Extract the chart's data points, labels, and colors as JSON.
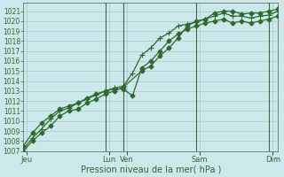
{
  "title": "",
  "xlabel": "Pression niveau de la mer( hPa )",
  "bg_color": "#cce8ea",
  "grid_color": "#99cccc",
  "line_color": "#2d6a2d",
  "dark_vline_color": "#446644",
  "ylim": [
    1007,
    1021.8
  ],
  "yticks": [
    1007,
    1008,
    1009,
    1010,
    1011,
    1012,
    1013,
    1014,
    1015,
    1016,
    1017,
    1018,
    1019,
    1020,
    1021
  ],
  "xlim": [
    0,
    14
  ],
  "day_tick_positions": [
    0.2,
    4.7,
    5.7,
    9.7,
    13.7
  ],
  "day_tick_labels": [
    "Jeu",
    "Lun",
    "Ven",
    "Sam",
    "Dim"
  ],
  "vline_positions": [
    4.5,
    5.5,
    9.5,
    13.5
  ],
  "series1_x": [
    0.0,
    0.5,
    1.0,
    1.5,
    2.0,
    2.5,
    3.0,
    3.5,
    4.0,
    4.5,
    5.0,
    5.5,
    6.5,
    7.0,
    7.5,
    8.0,
    8.5,
    9.0,
    9.5,
    10.0,
    10.5,
    11.0,
    11.5,
    12.0,
    12.5,
    13.0,
    13.5,
    14.0
  ],
  "series1_y": [
    1007.0,
    1008.0,
    1008.8,
    1009.5,
    1010.5,
    1011.0,
    1011.2,
    1011.8,
    1012.2,
    1012.7,
    1013.0,
    1013.4,
    1015.0,
    1015.5,
    1016.5,
    1017.3,
    1018.3,
    1019.5,
    1020.0,
    1020.2,
    1020.8,
    1021.0,
    1021.0,
    1020.7,
    1020.8,
    1020.8,
    1021.0,
    1021.2
  ],
  "series2_x": [
    0.0,
    0.5,
    1.0,
    1.5,
    2.0,
    2.5,
    3.0,
    3.5,
    4.0,
    4.5,
    5.0,
    5.5,
    6.0,
    6.5,
    7.0,
    7.5,
    8.0,
    8.5,
    9.0,
    9.5,
    10.0,
    10.5,
    11.0,
    11.5,
    12.0,
    12.5,
    13.0,
    13.5,
    14.0
  ],
  "series2_y": [
    1007.2,
    1008.3,
    1009.2,
    1010.2,
    1011.0,
    1011.3,
    1011.8,
    1012.2,
    1012.6,
    1013.0,
    1013.3,
    1013.5,
    1014.8,
    1016.6,
    1017.3,
    1018.3,
    1018.8,
    1019.5,
    1019.7,
    1019.9,
    1020.2,
    1020.5,
    1020.8,
    1020.5,
    1020.5,
    1020.3,
    1020.5,
    1020.6,
    1021.0
  ],
  "series3_x": [
    0.0,
    0.5,
    1.0,
    1.5,
    2.0,
    2.5,
    3.0,
    3.5,
    4.0,
    4.5,
    5.0,
    5.5,
    6.0,
    6.5,
    7.0,
    7.5,
    8.0,
    8.5,
    9.0,
    9.5,
    10.0,
    10.5,
    11.0,
    11.5,
    12.0,
    12.5,
    13.0,
    13.5,
    14.0
  ],
  "series3_y": [
    1007.5,
    1008.8,
    1009.8,
    1010.5,
    1011.2,
    1011.5,
    1011.8,
    1012.3,
    1012.7,
    1013.0,
    1013.2,
    1013.2,
    1012.5,
    1015.3,
    1016.0,
    1017.0,
    1018.0,
    1018.7,
    1019.2,
    1019.5,
    1019.8,
    1020.0,
    1020.2,
    1019.8,
    1020.0,
    1019.8,
    1020.0,
    1020.2,
    1020.5
  ],
  "marker_size": 2.5,
  "linewidth": 0.9,
  "tick_fontsize": 5.5,
  "xlabel_fontsize": 7
}
